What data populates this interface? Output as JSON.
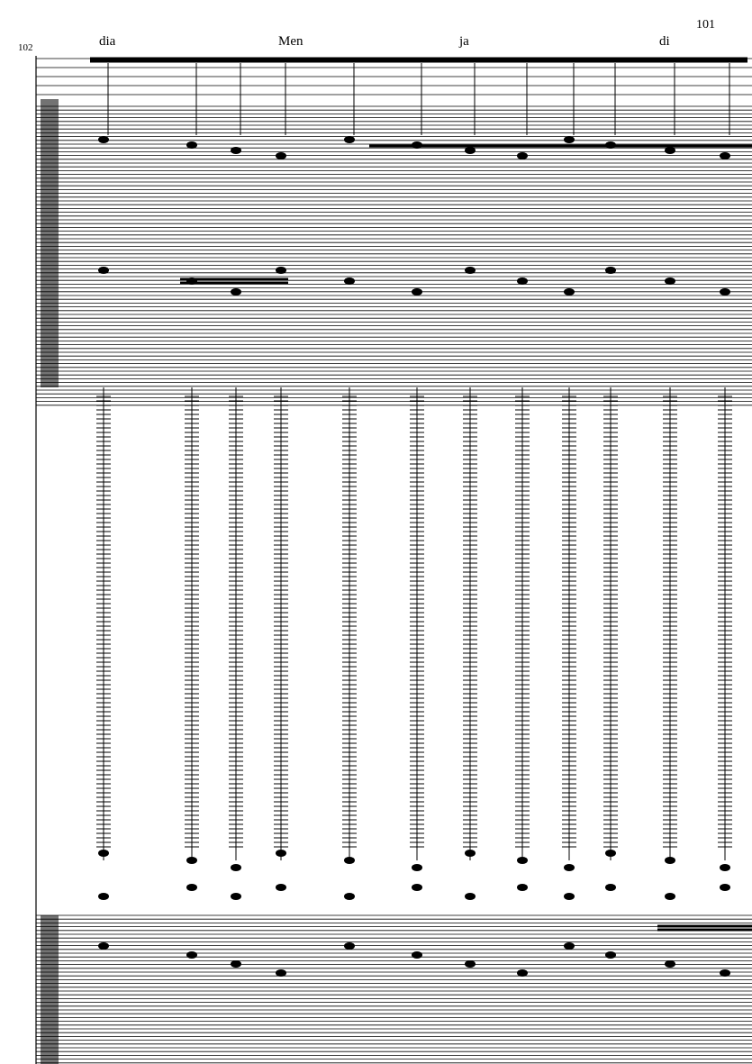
{
  "page_number": "101",
  "measure_number": "102",
  "lyrics": [
    "dia",
    "Men",
    "ja",
    "di"
  ]
}
